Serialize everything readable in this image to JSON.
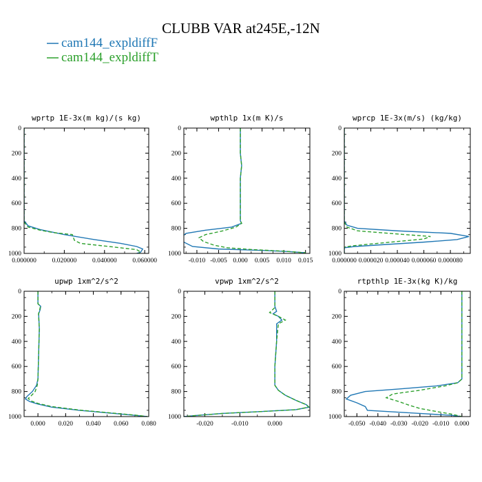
{
  "figure": {
    "title": "CLUBB VAR at245E,-12N"
  },
  "legend": [
    {
      "label": "cam144_expldiffF",
      "color": "#1f77b4",
      "dash": "solid"
    },
    {
      "label": "cam144_expldiffT",
      "color": "#2ca02c",
      "dash": "dashed"
    }
  ],
  "chart_data": [
    {
      "type": "line",
      "title": "wprtp 1E-3x(m kg)/(s kg)",
      "xlim": [
        0,
        0.062
      ],
      "ylim": [
        1000,
        0
      ],
      "xticks": [
        0,
        0.02,
        0.04,
        0.06
      ],
      "xtick_labels": [
        "0.000000",
        "0.020000",
        "0.040000",
        "0.060000"
      ],
      "yticks": [
        0,
        200,
        400,
        600,
        800,
        1000
      ],
      "ytick_labels": [
        "0",
        "200",
        "400",
        "600",
        "800",
        "1000"
      ],
      "series": [
        {
          "name": "cam144_expldiffF",
          "points": [
            [
              0,
              0
            ],
            [
              0,
              740
            ],
            [
              0.002,
              780
            ],
            [
              0.008,
              810
            ],
            [
              0.02,
              850
            ],
            [
              0.035,
              890
            ],
            [
              0.048,
              920
            ],
            [
              0.056,
              945
            ],
            [
              0.059,
              965
            ],
            [
              0.058,
              990
            ],
            [
              0.056,
              1000
            ]
          ]
        },
        {
          "name": "cam144_expldiffT",
          "points": [
            [
              0,
              0
            ],
            [
              0,
              750
            ],
            [
              0.002,
              790
            ],
            [
              0.008,
              815
            ],
            [
              0.015,
              835
            ],
            [
              0.024,
              850
            ],
            [
              0.025,
              895
            ],
            [
              0.028,
              920
            ],
            [
              0.045,
              950
            ],
            [
              0.056,
              970
            ],
            [
              0.058,
              990
            ],
            [
              0.057,
              1000
            ]
          ]
        }
      ]
    },
    {
      "type": "line",
      "title": "wpthlp 1x(m K)/s",
      "xlim": [
        -0.013,
        0.016
      ],
      "ylim": [
        1000,
        0
      ],
      "xticks": [
        -0.01,
        -0.005,
        0,
        0.005,
        0.01,
        0.015
      ],
      "xtick_labels": [
        "-0.010",
        "-0.005",
        "0.000",
        "0.005",
        "0.010",
        "0.015"
      ],
      "yticks": [
        0,
        200,
        400,
        600,
        800,
        1000
      ],
      "ytick_labels": [
        "0",
        "200",
        "400",
        "600",
        "800",
        "1000"
      ],
      "series": [
        {
          "name": "cam144_expldiffF",
          "points": [
            [
              0,
              0
            ],
            [
              0,
              200
            ],
            [
              0.0003,
              300
            ],
            [
              0,
              400
            ],
            [
              0,
              740
            ],
            [
              0.0003,
              760
            ],
            [
              -0.002,
              790
            ],
            [
              -0.008,
              815
            ],
            [
              -0.0125,
              840
            ],
            [
              -0.0135,
              870
            ],
            [
              -0.013,
              910
            ],
            [
              -0.011,
              945
            ],
            [
              -0.005,
              965
            ],
            [
              0.004,
              975
            ],
            [
              0.011,
              985
            ],
            [
              0.015,
              995
            ]
          ]
        },
        {
          "name": "cam144_expldiffT",
          "points": [
            [
              0,
              0
            ],
            [
              0,
              200
            ],
            [
              0.0003,
              300
            ],
            [
              0,
              400
            ],
            [
              0,
              740
            ],
            [
              0.0003,
              760
            ],
            [
              -0.001,
              790
            ],
            [
              -0.004,
              820
            ],
            [
              -0.008,
              850
            ],
            [
              -0.0095,
              875
            ],
            [
              -0.0085,
              905
            ],
            [
              -0.006,
              935
            ],
            [
              -0.003,
              955
            ],
            [
              0.003,
              970
            ],
            [
              0.01,
              982
            ],
            [
              0.015,
              995
            ]
          ]
        }
      ]
    },
    {
      "type": "line",
      "title": "wprcp 1E-3x(m/s) (kg/kg)",
      "xlim": [
        0,
        9.5e-05
      ],
      "ylim": [
        1000,
        0
      ],
      "xticks": [
        0,
        2e-05,
        4e-05,
        6e-05,
        8e-05
      ],
      "xtick_labels": [
        "0.000000",
        "0.000020",
        "0.000040",
        "0.000060",
        "0.000080"
      ],
      "yticks": [
        0,
        200,
        400,
        600,
        800,
        1000
      ],
      "ytick_labels": [
        "0",
        "200",
        "400",
        "600",
        "800",
        "1000"
      ],
      "series": [
        {
          "name": "cam144_expldiffF",
          "points": [
            [
              0,
              0
            ],
            [
              0,
              740
            ],
            [
              2e-06,
              775
            ],
            [
              1e-05,
              800
            ],
            [
              4e-05,
              820
            ],
            [
              8e-05,
              840
            ],
            [
              9.4e-05,
              865
            ],
            [
              8.5e-05,
              890
            ],
            [
              6e-05,
              910
            ],
            [
              3e-05,
              930
            ],
            [
              8e-06,
              945
            ],
            [
              0,
              955
            ],
            [
              0,
              1000
            ]
          ]
        },
        {
          "name": "cam144_expldiffT",
          "points": [
            [
              0,
              0
            ],
            [
              0,
              750
            ],
            [
              2e-06,
              790
            ],
            [
              1e-05,
              820
            ],
            [
              4e-05,
              845
            ],
            [
              6.5e-05,
              865
            ],
            [
              6e-05,
              885
            ],
            [
              4e-05,
              905
            ],
            [
              2e-05,
              925
            ],
            [
              6e-06,
              940
            ],
            [
              0,
              950
            ],
            [
              0,
              1000
            ]
          ]
        }
      ]
    },
    {
      "type": "line",
      "title": "upwp 1xm^2/s^2",
      "xlim": [
        -0.01,
        0.08
      ],
      "ylim": [
        1000,
        0
      ],
      "xticks": [
        0,
        0.02,
        0.04,
        0.06,
        0.08
      ],
      "xtick_labels": [
        "0.000",
        "0.020",
        "0.040",
        "0.060",
        "0.080"
      ],
      "yticks": [
        0,
        200,
        400,
        600,
        800,
        1000
      ],
      "ytick_labels": [
        "0",
        "200",
        "400",
        "600",
        "800",
        "1000"
      ],
      "series": [
        {
          "name": "cam144_expldiffF",
          "points": [
            [
              0,
              0
            ],
            [
              0,
              100
            ],
            [
              0.002,
              120
            ],
            [
              0.0015,
              150
            ],
            [
              0.0005,
              180
            ],
            [
              0.001,
              300
            ],
            [
              0.0005,
              500
            ],
            [
              0,
              700
            ],
            [
              -0.001,
              750
            ],
            [
              -0.004,
              800
            ],
            [
              -0.008,
              840
            ],
            [
              -0.009,
              860
            ],
            [
              -0.006,
              880
            ],
            [
              0,
              900
            ],
            [
              0.01,
              925
            ],
            [
              0.03,
              950
            ],
            [
              0.05,
              970
            ],
            [
              0.07,
              990
            ],
            [
              0.079,
              1000
            ]
          ]
        },
        {
          "name": "cam144_expldiffT",
          "points": [
            [
              0,
              0
            ],
            [
              0,
              100
            ],
            [
              0.0018,
              120
            ],
            [
              0.0012,
              150
            ],
            [
              0.0004,
              180
            ],
            [
              0.001,
              300
            ],
            [
              0.0005,
              500
            ],
            [
              0,
              700
            ],
            [
              -0.0005,
              750
            ],
            [
              -0.002,
              800
            ],
            [
              -0.005,
              835
            ],
            [
              -0.007,
              855
            ],
            [
              -0.005,
              875
            ],
            [
              0,
              895
            ],
            [
              0.01,
              920
            ],
            [
              0.03,
              948
            ],
            [
              0.05,
              968
            ],
            [
              0.07,
              988
            ],
            [
              0.079,
              1000
            ]
          ]
        }
      ]
    },
    {
      "type": "line",
      "title": "vpwp 1xm^2/s^2",
      "xlim": [
        -0.026,
        0.01
      ],
      "ylim": [
        1000,
        0
      ],
      "xticks": [
        -0.02,
        -0.01,
        0
      ],
      "xtick_labels": [
        "-0.020",
        "-0.010",
        "0.000"
      ],
      "yticks": [
        0,
        200,
        400,
        600,
        800,
        1000
      ],
      "ytick_labels": [
        "0",
        "200",
        "400",
        "600",
        "800",
        "1000"
      ],
      "series": [
        {
          "name": "cam144_expldiffF",
          "points": [
            [
              0,
              0
            ],
            [
              0,
              120
            ],
            [
              0.0005,
              160
            ],
            [
              -0.0005,
              180
            ],
            [
              0.001,
              200
            ],
            [
              0.002,
              230
            ],
            [
              0.0005,
              260
            ],
            [
              0.0005,
              400
            ],
            [
              0,
              600
            ],
            [
              0,
              700
            ],
            [
              0,
              750
            ],
            [
              0.001,
              790
            ],
            [
              0.003,
              830
            ],
            [
              0.006,
              870
            ],
            [
              0.009,
              905
            ],
            [
              0.0098,
              925
            ],
            [
              0.006,
              945
            ],
            [
              -0.004,
              960
            ],
            [
              -0.015,
              975
            ],
            [
              -0.022,
              990
            ],
            [
              -0.026,
              1000
            ]
          ]
        },
        {
          "name": "cam144_expldiffT",
          "points": [
            [
              0,
              0
            ],
            [
              0,
              130
            ],
            [
              -0.0015,
              170
            ],
            [
              0.001,
              200
            ],
            [
              0.003,
              230
            ],
            [
              0.001,
              260
            ],
            [
              0.0005,
              400
            ],
            [
              0,
              600
            ],
            [
              0,
              700
            ],
            [
              0,
              750
            ],
            [
              0.001,
              790
            ],
            [
              0.003,
              830
            ],
            [
              0.006,
              870
            ],
            [
              0.009,
              905
            ],
            [
              0.0096,
              925
            ],
            [
              0.006,
              945
            ],
            [
              -0.004,
              960
            ],
            [
              -0.015,
              975
            ],
            [
              -0.022,
              990
            ],
            [
              -0.026,
              1000
            ]
          ]
        }
      ]
    },
    {
      "type": "line",
      "title": "rtpthlp 1E-3x(kg K)/kg",
      "xlim": [
        -0.056,
        0.004
      ],
      "ylim": [
        1000,
        0
      ],
      "xticks": [
        -0.05,
        -0.04,
        -0.03,
        -0.02,
        -0.01,
        0
      ],
      "xtick_labels": [
        "-0.050",
        "-0.040",
        "-0.030",
        "-0.020",
        "-0.010",
        "0.000"
      ],
      "yticks": [
        0,
        200,
        400,
        600,
        800,
        1000
      ],
      "ytick_labels": [
        "0",
        "200",
        "400",
        "600",
        "800",
        "1000"
      ],
      "series": [
        {
          "name": "cam144_expldiffF",
          "points": [
            [
              0,
              0
            ],
            [
              0,
              700
            ],
            [
              -0.002,
              730
            ],
            [
              -0.012,
              755
            ],
            [
              -0.03,
              780
            ],
            [
              -0.046,
              800
            ],
            [
              -0.053,
              830
            ],
            [
              -0.055,
              860
            ],
            [
              -0.05,
              890
            ],
            [
              -0.046,
              920
            ],
            [
              -0.045,
              950
            ],
            [
              -0.02,
              975
            ],
            [
              -0.005,
              990
            ],
            [
              0,
              1000
            ]
          ]
        },
        {
          "name": "cam144_expldiffT",
          "points": [
            [
              0,
              0
            ],
            [
              0,
              700
            ],
            [
              -0.002,
              730
            ],
            [
              -0.008,
              755
            ],
            [
              -0.02,
              790
            ],
            [
              -0.033,
              820
            ],
            [
              -0.036,
              850
            ],
            [
              -0.03,
              880
            ],
            [
              -0.025,
              910
            ],
            [
              -0.02,
              935
            ],
            [
              -0.012,
              960
            ],
            [
              -0.005,
              980
            ],
            [
              0,
              1000
            ]
          ]
        }
      ]
    }
  ]
}
